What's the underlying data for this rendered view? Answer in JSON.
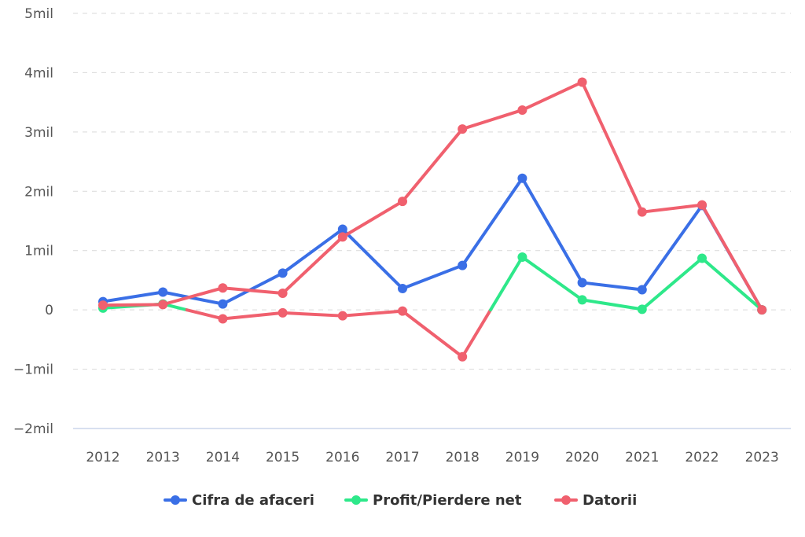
{
  "chart_data": {
    "type": "line",
    "title": "",
    "xlabel": "",
    "ylabel": "",
    "categories": [
      "2012",
      "2013",
      "2014",
      "2015",
      "2016",
      "2017",
      "2018",
      "2019",
      "2020",
      "2021",
      "2022",
      "2023"
    ],
    "ylim": [
      -2000000,
      5000000
    ],
    "yticks": [
      {
        "value": 5000000,
        "label": "5mil"
      },
      {
        "value": 4000000,
        "label": "4mil"
      },
      {
        "value": 3000000,
        "label": "3mil"
      },
      {
        "value": 2000000,
        "label": "2mil"
      },
      {
        "value": 1000000,
        "label": "1mil"
      },
      {
        "value": 0,
        "label": "0"
      },
      {
        "value": -1000000,
        "label": "−1mil"
      },
      {
        "value": -2000000,
        "label": "−2mil"
      }
    ],
    "grid": true,
    "legend_position": "bottom-center",
    "series": [
      {
        "name": "Cifra de afaceri",
        "color": "#3a6fe6",
        "negative_color": "#3a6fe6",
        "values": [
          140000,
          300000,
          100000,
          620000,
          1360000,
          360000,
          750000,
          2220000,
          460000,
          340000,
          1760000,
          0
        ]
      },
      {
        "name": "Profit/Pierdere net",
        "color": "#2ee88a",
        "negative_color": "#f0606e",
        "values": [
          30000,
          100000,
          -150000,
          -50000,
          -100000,
          -20000,
          -790000,
          890000,
          170000,
          10000,
          870000,
          0
        ]
      },
      {
        "name": "Datorii",
        "color": "#f0606e",
        "negative_color": "#f0606e",
        "values": [
          80000,
          90000,
          370000,
          280000,
          1230000,
          1830000,
          3050000,
          3370000,
          3840000,
          1650000,
          1770000,
          0
        ]
      }
    ]
  }
}
